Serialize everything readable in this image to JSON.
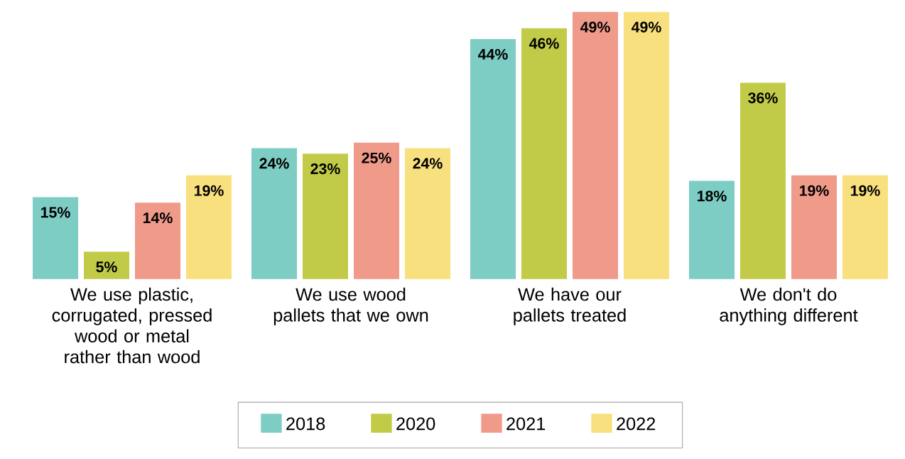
{
  "chart_data": {
    "type": "bar",
    "categories": [
      "We use plastic, corrugated, pressed wood or metal rather than wood",
      "We use wood pallets that we own",
      "We have our pallets treated",
      "We don't do anything different"
    ],
    "series": [
      {
        "name": "2018",
        "color": "#7dcdc4",
        "values": [
          15,
          24,
          44,
          18
        ],
        "value_labels": [
          "15%",
          "24%",
          "44%",
          "18%"
        ]
      },
      {
        "name": "2020",
        "color": "#c2cb48",
        "values": [
          5,
          23,
          46,
          36
        ],
        "value_labels": [
          "5%",
          "23%",
          "46%",
          "36%"
        ]
      },
      {
        "name": "2021",
        "color": "#f09a8a",
        "values": [
          14,
          25,
          49,
          19
        ],
        "value_labels": [
          "14%",
          "25%",
          "49%",
          "19%"
        ]
      },
      {
        "name": "2022",
        "color": "#f8e07e",
        "values": [
          19,
          24,
          49,
          19
        ],
        "value_labels": [
          "19%",
          "24%",
          "49%",
          "19%"
        ]
      }
    ],
    "legend": "bottom"
  }
}
